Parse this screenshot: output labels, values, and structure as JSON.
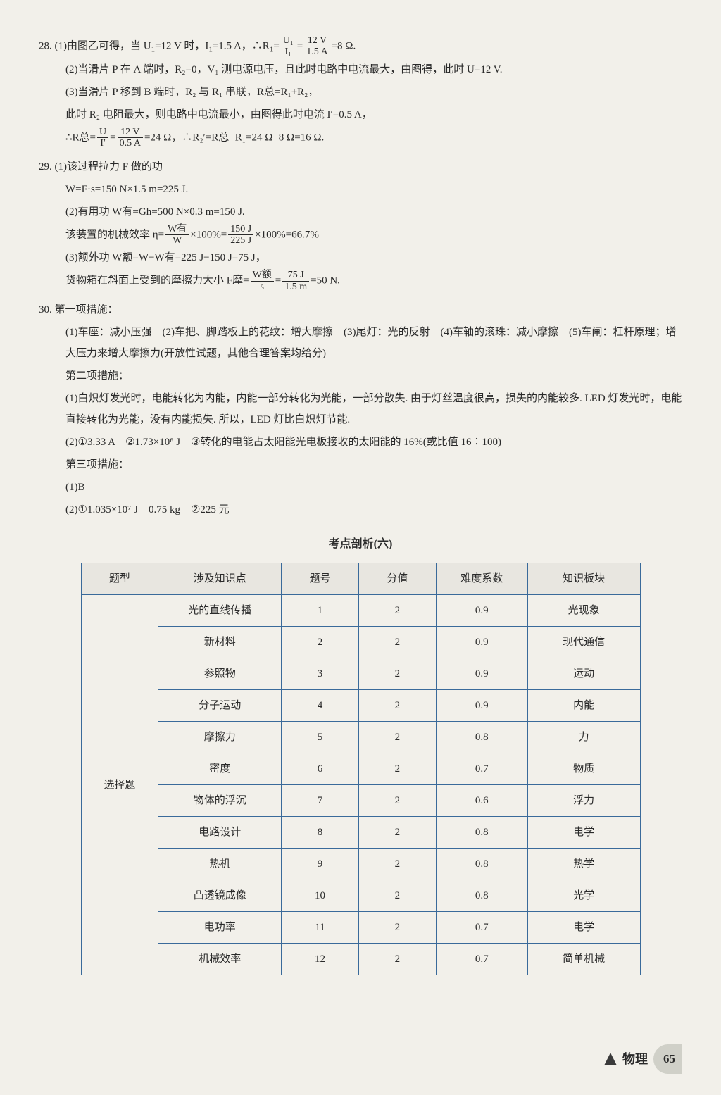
{
  "q28": {
    "line1_a": "28. (1)由图乙可得，当 U",
    "line1_b": "=12 V 时，I",
    "line1_c": "=1.5 A，∴R",
    "line1_d": "=",
    "frac1_num": "U₁",
    "frac1_den": "I₁",
    "line1_e": "=",
    "frac2_num": "12 V",
    "frac2_den": "1.5 A",
    "line1_f": "=8 Ω.",
    "line2": "(2)当滑片 P 在 A 端时，R₂=0，V₁ 测电源电压，且此时电路中电流最大，由图得，此时 U=12 V.",
    "line3": "(3)当滑片 P 移到 B 端时，R₂ 与 R₁ 串联，R总=R₁+R₂，",
    "line4": "此时 R₂ 电阻最大，则电路中电流最小，由图得此时电流 I′=0.5 A，",
    "line5_a": "∴R总=",
    "frac3_num": "U",
    "frac3_den": "I′",
    "line5_b": "=",
    "frac4_num": "12 V",
    "frac4_den": "0.5 A",
    "line5_c": "=24 Ω，∴R₂′=R总−R₁=24 Ω−8 Ω=16 Ω."
  },
  "q29": {
    "line1": "29. (1)该过程拉力 F 做的功",
    "line2": "W=F·s=150 N×1.5 m=225 J.",
    "line3": "(2)有用功 W有=Gh=500 N×0.3 m=150 J.",
    "line4_a": "该装置的机械效率 η=",
    "frac1_num": "W有",
    "frac1_den": "W",
    "line4_b": "×100%=",
    "frac2_num": "150 J",
    "frac2_den": "225 J",
    "line4_c": "×100%=66.7%",
    "line5": "(3)额外功 W额=W−W有=225 J−150 J=75 J，",
    "line6_a": "货物箱在斜面上受到的摩擦力大小 F摩=",
    "frac3_num": "W额",
    "frac3_den": "s",
    "line6_b": "=",
    "frac4_num": "75 J",
    "frac4_den": "1.5 m",
    "line6_c": "=50 N."
  },
  "q30": {
    "line1": "30. 第一项措施：",
    "line2": "(1)车座：减小压强　(2)车把、脚踏板上的花纹：增大摩擦　(3)尾灯：光的反射　(4)车轴的滚珠：减小摩擦　(5)车闸：杠杆原理；增大压力来增大摩擦力(开放性试题，其他合理答案均给分)",
    "line3": "第二项措施：",
    "line4": "(1)白炽灯发光时，电能转化为内能，内能一部分转化为光能，一部分散失. 由于灯丝温度很高，损失的内能较多. LED 灯发光时，电能直接转化为光能，没有内能损失. 所以，LED 灯比白炽灯节能.",
    "line5": "(2)①3.33 A　②1.73×10⁶ J　③转化的电能占太阳能光电板接收的太阳能的 16%(或比值 16∶100)",
    "line6": "第三项措施：",
    "line7": "(1)B",
    "line8": "(2)①1.035×10⁷ J　0.75 kg　②225 元"
  },
  "table_title": "考点剖析(六)",
  "table": {
    "headers": [
      "题型",
      "涉及知识点",
      "题号",
      "分值",
      "难度系数",
      "知识板块"
    ],
    "row_type": "选择题",
    "rows": [
      [
        "光的直线传播",
        "1",
        "2",
        "0.9",
        "光现象"
      ],
      [
        "新材料",
        "2",
        "2",
        "0.9",
        "现代通信"
      ],
      [
        "参照物",
        "3",
        "2",
        "0.9",
        "运动"
      ],
      [
        "分子运动",
        "4",
        "2",
        "0.9",
        "内能"
      ],
      [
        "摩擦力",
        "5",
        "2",
        "0.8",
        "力"
      ],
      [
        "密度",
        "6",
        "2",
        "0.7",
        "物质"
      ],
      [
        "物体的浮沉",
        "7",
        "2",
        "0.6",
        "浮力"
      ],
      [
        "电路设计",
        "8",
        "2",
        "0.8",
        "电学"
      ],
      [
        "热机",
        "9",
        "2",
        "0.8",
        "热学"
      ],
      [
        "凸透镜成像",
        "10",
        "2",
        "0.8",
        "光学"
      ],
      [
        "电功率",
        "11",
        "2",
        "0.7",
        "电学"
      ],
      [
        "机械效率",
        "12",
        "2",
        "0.7",
        "简单机械"
      ]
    ],
    "col_widths": [
      "110px",
      "175px",
      "110px",
      "110px",
      "130px",
      "160px"
    ],
    "border_color": "#3a6a9a"
  },
  "footer": {
    "subject": "物理",
    "page": "65"
  }
}
